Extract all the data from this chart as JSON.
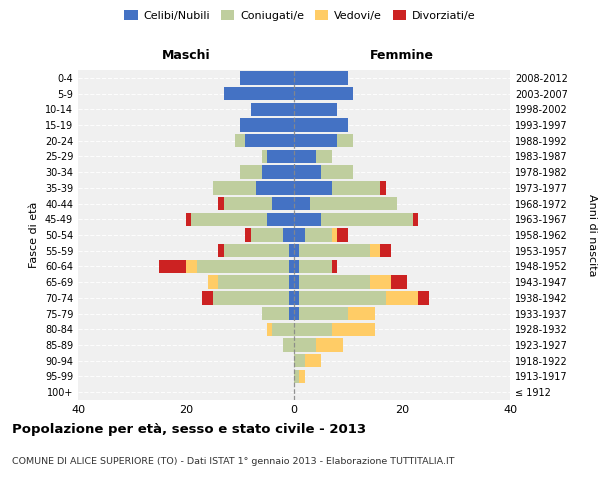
{
  "age_groups": [
    "100+",
    "95-99",
    "90-94",
    "85-89",
    "80-84",
    "75-79",
    "70-74",
    "65-69",
    "60-64",
    "55-59",
    "50-54",
    "45-49",
    "40-44",
    "35-39",
    "30-34",
    "25-29",
    "20-24",
    "15-19",
    "10-14",
    "5-9",
    "0-4"
  ],
  "birth_years": [
    "≤ 1912",
    "1913-1917",
    "1918-1922",
    "1923-1927",
    "1928-1932",
    "1933-1937",
    "1938-1942",
    "1943-1947",
    "1948-1952",
    "1953-1957",
    "1958-1962",
    "1963-1967",
    "1968-1972",
    "1973-1977",
    "1978-1982",
    "1983-1987",
    "1988-1992",
    "1993-1997",
    "1998-2002",
    "2003-2007",
    "2008-2012"
  ],
  "colors": {
    "celibi": "#4472C4",
    "coniugati": "#BFCE9E",
    "vedovi": "#FFCC66",
    "divorziati": "#CC2222"
  },
  "male": {
    "celibi": [
      0,
      0,
      0,
      0,
      0,
      1,
      1,
      1,
      1,
      1,
      2,
      5,
      4,
      7,
      6,
      5,
      9,
      10,
      8,
      13,
      10
    ],
    "coniugati": [
      0,
      0,
      0,
      2,
      4,
      5,
      14,
      13,
      17,
      12,
      6,
      14,
      9,
      8,
      4,
      1,
      2,
      0,
      0,
      0,
      0
    ],
    "vedovi": [
      0,
      0,
      0,
      0,
      1,
      0,
      0,
      2,
      2,
      0,
      0,
      0,
      0,
      0,
      0,
      0,
      0,
      0,
      0,
      0,
      0
    ],
    "divorziati": [
      0,
      0,
      0,
      0,
      0,
      0,
      2,
      0,
      5,
      1,
      1,
      1,
      1,
      0,
      0,
      0,
      0,
      0,
      0,
      0,
      0
    ]
  },
  "female": {
    "nubili": [
      0,
      0,
      0,
      0,
      0,
      1,
      1,
      1,
      1,
      1,
      2,
      5,
      3,
      7,
      5,
      4,
      8,
      10,
      8,
      11,
      10
    ],
    "coniugate": [
      0,
      1,
      2,
      4,
      7,
      9,
      16,
      13,
      6,
      13,
      5,
      17,
      16,
      9,
      6,
      3,
      3,
      0,
      0,
      0,
      0
    ],
    "vedove": [
      0,
      1,
      3,
      5,
      8,
      5,
      6,
      4,
      0,
      2,
      1,
      0,
      0,
      0,
      0,
      0,
      0,
      0,
      0,
      0,
      0
    ],
    "divorziate": [
      0,
      0,
      0,
      0,
      0,
      0,
      2,
      3,
      1,
      2,
      2,
      1,
      0,
      1,
      0,
      0,
      0,
      0,
      0,
      0,
      0
    ]
  },
  "xlim": [
    -40,
    40
  ],
  "xticks": [
    -40,
    -20,
    0,
    20,
    40
  ],
  "xticklabels": [
    "40",
    "20",
    "0",
    "20",
    "40"
  ],
  "title": "Popolazione per età, sesso e stato civile - 2013",
  "subtitle": "COMUNE DI ALICE SUPERIORE (TO) - Dati ISTAT 1° gennaio 2013 - Elaborazione TUTTITALIA.IT",
  "ylabel_left": "Fasce di età",
  "ylabel_right": "Anni di nascita",
  "header_left": "Maschi",
  "header_right": "Femmine",
  "background_color": "#f0f0f0",
  "bar_height": 0.85
}
